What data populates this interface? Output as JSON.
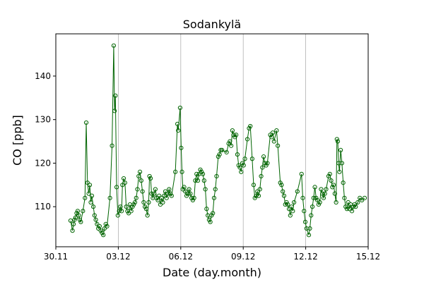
{
  "chart_data": {
    "type": "line",
    "title": "Sodankylä",
    "x_label": "Date (day.month)",
    "y_label": "CO [ppb]",
    "xlim": [
      0,
      15
    ],
    "xticks": [
      {
        "value": 0,
        "label": "30.11"
      },
      {
        "value": 3,
        "label": "03.12"
      },
      {
        "value": 6,
        "label": "06.12"
      },
      {
        "value": 9,
        "label": "09.12"
      },
      {
        "value": 12,
        "label": "12.12"
      },
      {
        "value": 15,
        "label": "15.12"
      }
    ],
    "ylim": [
      100.8,
      149.7
    ],
    "yticks": [
      110,
      120,
      130,
      140
    ],
    "grid": "x",
    "x": [
      0.71,
      0.8,
      0.85,
      0.9,
      0.95,
      1.0,
      1.05,
      1.1,
      1.15,
      1.2,
      1.3,
      1.4,
      1.46,
      1.52,
      1.58,
      1.63,
      1.68,
      1.73,
      1.8,
      1.86,
      1.92,
      1.98,
      2.04,
      2.1,
      2.16,
      2.22,
      2.28,
      2.34,
      2.4,
      2.46,
      2.6,
      2.7,
      2.78,
      2.82,
      2.86,
      2.92,
      2.98,
      3.04,
      3.1,
      3.16,
      3.2,
      3.26,
      3.32,
      3.38,
      3.44,
      3.5,
      3.56,
      3.62,
      3.68,
      3.74,
      3.8,
      3.86,
      3.92,
      3.98,
      4.04,
      4.1,
      4.16,
      4.22,
      4.28,
      4.34,
      4.4,
      4.46,
      4.5,
      4.55,
      4.6,
      4.66,
      4.72,
      4.78,
      4.84,
      4.9,
      4.96,
      5.02,
      5.08,
      5.14,
      5.2,
      5.26,
      5.32,
      5.38,
      5.44,
      5.5,
      5.56,
      5.74,
      5.84,
      5.88,
      5.97,
      6.02,
      6.06,
      6.1,
      6.16,
      6.22,
      6.28,
      6.34,
      6.4,
      6.46,
      6.52,
      6.58,
      6.64,
      6.7,
      6.76,
      6.82,
      6.88,
      6.94,
      7.0,
      7.06,
      7.12,
      7.18,
      7.24,
      7.3,
      7.36,
      7.42,
      7.48,
      7.54,
      7.6,
      7.66,
      7.72,
      7.8,
      7.86,
      7.92,
      7.98,
      8.2,
      8.3,
      8.36,
      8.42,
      8.48,
      8.54,
      8.6,
      8.66,
      8.72,
      8.78,
      8.84,
      8.9,
      8.96,
      9.02,
      9.08,
      9.2,
      9.28,
      9.34,
      9.43,
      9.5,
      9.56,
      9.62,
      9.68,
      9.74,
      9.8,
      9.86,
      9.92,
      9.98,
      10.04,
      10.1,
      10.16,
      10.3,
      10.36,
      10.42,
      10.48,
      10.6,
      10.66,
      10.78,
      10.84,
      10.9,
      10.96,
      11.02,
      11.08,
      11.14,
      11.2,
      11.26,
      11.32,
      11.38,
      11.44,
      11.6,
      11.8,
      11.86,
      11.92,
      11.98,
      12.04,
      12.15,
      12.2,
      12.26,
      12.32,
      12.38,
      12.44,
      12.5,
      12.56,
      12.62,
      12.68,
      12.74,
      12.8,
      12.86,
      12.92,
      12.98,
      13.1,
      13.16,
      13.22,
      13.28,
      13.34,
      13.4,
      13.46,
      13.5,
      13.54,
      13.58,
      13.62,
      13.68,
      13.74,
      13.8,
      13.86,
      13.92,
      13.98,
      14.04,
      14.1,
      14.16,
      14.22,
      14.28,
      14.34,
      14.4,
      14.5,
      14.6,
      14.7,
      14.83
    ],
    "series": [
      {
        "color": "#006400",
        "values": [
          106.8,
          104.5,
          106,
          107,
          107.5,
          108.5,
          109,
          108,
          107,
          106.5,
          109,
          112,
          129.3,
          115.5,
          113,
          115,
          111,
          112.5,
          110,
          108,
          107,
          106,
          105,
          105.5,
          104.5,
          104,
          103.5,
          105,
          106,
          105.5,
          112,
          124,
          147,
          132,
          135.5,
          114.5,
          108,
          109,
          110,
          109,
          115,
          116.5,
          115.5,
          110,
          109,
          108.5,
          110.5,
          109,
          110,
          110.5,
          111,
          112,
          114,
          117,
          118,
          116,
          113.5,
          111,
          110,
          109.5,
          108,
          111,
          117,
          116.5,
          113,
          112,
          113,
          114,
          112,
          111.5,
          112.5,
          110.5,
          112,
          111,
          112.5,
          113.5,
          112,
          113,
          114,
          113,
          112.5,
          118,
          129,
          127.5,
          132.7,
          123.5,
          118,
          114,
          114.5,
          113.5,
          112.5,
          113,
          114,
          113,
          112,
          111.5,
          112,
          116,
          117.5,
          116,
          117.5,
          118.5,
          118,
          117.5,
          116,
          114,
          109.5,
          108,
          107,
          106.5,
          108,
          108.5,
          112,
          114,
          117,
          121.5,
          122,
          123,
          123,
          122.5,
          124.5,
          125,
          124,
          127.5,
          126.5,
          126,
          126.5,
          122,
          119.5,
          119,
          118,
          120,
          119.5,
          121,
          125.5,
          128,
          128.5,
          121,
          115,
          112,
          112.5,
          113.5,
          112.5,
          114,
          117,
          119,
          121.5,
          120,
          119.5,
          120,
          126.5,
          126,
          127,
          125,
          127.5,
          124,
          115.5,
          115,
          113.5,
          112.5,
          110.5,
          111,
          110.5,
          109.5,
          108,
          110,
          109,
          111,
          113.5,
          117.5,
          112,
          109,
          106.5,
          105,
          103.5,
          105,
          108,
          110,
          112,
          114.5,
          112,
          111.5,
          110.5,
          111,
          114,
          113,
          112,
          113,
          114,
          117,
          117.5,
          116,
          114.5,
          115,
          113,
          111,
          125.5,
          125,
          120,
          118,
          123,
          120,
          115.5,
          112,
          110,
          109.5,
          111,
          109.5,
          110.5,
          109,
          110,
          110.5,
          110,
          111,
          112,
          111.5,
          112
        ]
      }
    ]
  }
}
